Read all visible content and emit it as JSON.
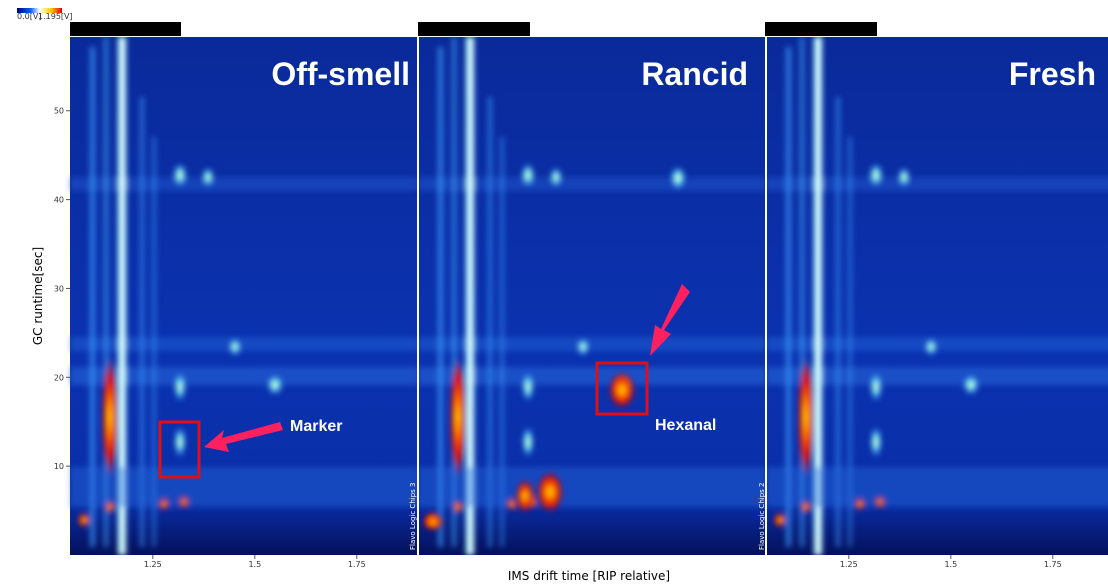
{
  "colorbar": {
    "min": "0.0[V]",
    "max": "1.195[V]"
  },
  "y_axis": {
    "label": "GC runtime[sec]",
    "range": [
      0,
      58.3
    ],
    "ticks": [
      10,
      20,
      30,
      40,
      50
    ]
  },
  "x_axis": {
    "label": "IMS drift time [RIP relative]",
    "range": [
      1.047,
      1.9
    ],
    "ticks": [
      1.25,
      1.5,
      1.75
    ]
  },
  "panels": [
    {
      "title": "Off-smell"
    },
    {
      "title": "Rancid",
      "side_label": "Flavo Logic Chips 3"
    },
    {
      "title": "Fresh",
      "side_label": "Flavo Logic Chips 2"
    }
  ],
  "annotations": {
    "marker": "Marker",
    "hexanal": "Hexanal"
  }
}
